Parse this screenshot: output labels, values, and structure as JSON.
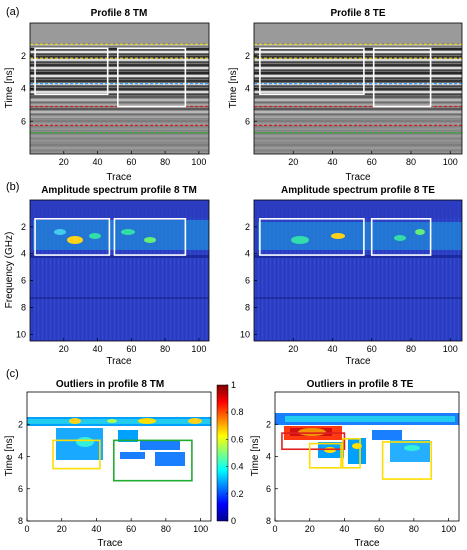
{
  "figure": {
    "panel_labels": [
      "(a)",
      "(b)",
      "(c)"
    ]
  },
  "colors": {
    "box_white": "#ffffff",
    "box_yellow": "#ffdd00",
    "box_green": "#22aa33",
    "box_red": "#e02020",
    "line_yellow": "#f4e020",
    "line_red": "#d02020",
    "line_green": "#22bb22",
    "line_blue": "#3399ff"
  },
  "chart_data": [
    {
      "id": "a-left",
      "type": "heatmap",
      "title": "Profile 8 TM",
      "xlabel": "Trace",
      "ylabel": "Time [ns]",
      "xlim": [
        0,
        106
      ],
      "ylim": [
        8,
        0
      ],
      "xticks": [
        20,
        40,
        60,
        80,
        100
      ],
      "yticks": [
        2,
        4,
        6
      ],
      "boxes": [
        {
          "color": "white",
          "x": [
            3,
            46
          ],
          "y": [
            1.55,
            4.35
          ]
        },
        {
          "color": "white",
          "x": [
            52,
            92
          ],
          "y": [
            1.55,
            5.1
          ]
        }
      ],
      "hlines": [
        {
          "color": "yellow",
          "y": 1.3
        },
        {
          "color": "yellow",
          "y": 2.15
        },
        {
          "color": "blue",
          "y": 3.7
        },
        {
          "color": "red",
          "y": 5.1
        },
        {
          "color": "red",
          "y": 6.25
        },
        {
          "color": "green",
          "y": 6.7
        }
      ]
    },
    {
      "id": "a-right",
      "type": "heatmap",
      "title": "Profile 8 TE",
      "xlabel": "Trace",
      "ylabel": "Time [ns]",
      "xlim": [
        0,
        106
      ],
      "ylim": [
        8,
        0
      ],
      "xticks": [
        20,
        40,
        60,
        80,
        100
      ],
      "yticks": [
        2,
        4,
        6
      ],
      "boxes": [
        {
          "color": "white",
          "x": [
            3,
            56
          ],
          "y": [
            1.55,
            4.35
          ]
        },
        {
          "color": "white",
          "x": [
            61,
            90
          ],
          "y": [
            1.55,
            5.1
          ]
        }
      ],
      "hlines": [
        {
          "color": "yellow",
          "y": 1.3
        },
        {
          "color": "yellow",
          "y": 2.15
        },
        {
          "color": "blue",
          "y": 3.7
        },
        {
          "color": "red",
          "y": 5.1
        },
        {
          "color": "red",
          "y": 6.25
        },
        {
          "color": "green",
          "y": 6.7
        }
      ]
    },
    {
      "id": "b-left",
      "type": "heatmap",
      "title": "Amplitude spectrum profile 8 TM",
      "xlabel": "Trace",
      "ylabel": "Frequency (GHz)",
      "xlim": [
        0,
        106
      ],
      "ylim": [
        10.5,
        0
      ],
      "xticks": [
        20,
        40,
        60,
        80,
        100
      ],
      "yticks": [
        2,
        4,
        6,
        8,
        10
      ],
      "boxes": [
        {
          "color": "white",
          "x": [
            3,
            47
          ],
          "y": [
            1.4,
            4.1
          ]
        },
        {
          "color": "white",
          "x": [
            50,
            92
          ],
          "y": [
            1.4,
            4.1
          ]
        }
      ]
    },
    {
      "id": "b-right",
      "type": "heatmap",
      "title": "Amplitude spectrum profile 8 TE",
      "xlabel": "Trace",
      "ylabel": "",
      "xlim": [
        0,
        106
      ],
      "ylim": [
        10.5,
        0
      ],
      "xticks": [
        20,
        40,
        60,
        80,
        100
      ],
      "yticks": [
        2,
        4,
        6,
        8,
        10
      ],
      "boxes": [
        {
          "color": "white",
          "x": [
            3,
            56
          ],
          "y": [
            1.4,
            4.1
          ]
        },
        {
          "color": "white",
          "x": [
            60,
            90
          ],
          "y": [
            1.4,
            4.1
          ]
        }
      ]
    },
    {
      "id": "c-left",
      "type": "heatmap",
      "title": "Outliers in profile 8 TM",
      "xlabel": "Trace",
      "ylabel": "Time [ns]",
      "xlim": [
        0,
        106
      ],
      "ylim": [
        8,
        0
      ],
      "xticks": [
        0,
        20,
        40,
        60,
        80,
        100
      ],
      "yticks": [
        2,
        4,
        6,
        8
      ],
      "colorbar": {
        "min": 0,
        "max": 1,
        "ticks": [
          0,
          0.2,
          0.4,
          0.6,
          0.8,
          1
        ],
        "labels": [
          "0",
          "0.2",
          "0.4",
          "0.6",
          "0.8",
          "1"
        ]
      },
      "boxes": [
        {
          "color": "yellow",
          "x": [
            15,
            42
          ],
          "y": [
            3.0,
            4.75
          ]
        },
        {
          "color": "green",
          "x": [
            50,
            95
          ],
          "y": [
            3.0,
            5.5
          ]
        }
      ]
    },
    {
      "id": "c-right",
      "type": "heatmap",
      "title": "Outliers in profile 8 TE",
      "xlabel": "Trace",
      "ylabel": "Time [ns]",
      "xlim": [
        0,
        106
      ],
      "ylim": [
        8,
        0
      ],
      "xticks": [
        0,
        20,
        40,
        60,
        80,
        100
      ],
      "yticks": [
        2,
        4,
        6,
        8
      ],
      "boxes": [
        {
          "color": "red",
          "x": [
            4,
            40
          ],
          "y": [
            2.55,
            3.55
          ]
        },
        {
          "color": "yellow",
          "x": [
            20,
            38
          ],
          "y": [
            3.2,
            4.7
          ]
        },
        {
          "color": "yellow",
          "x": [
            39,
            49
          ],
          "y": [
            2.9,
            4.7
          ]
        },
        {
          "color": "yellow",
          "x": [
            62,
            90
          ],
          "y": [
            3.1,
            5.4
          ]
        }
      ]
    }
  ]
}
